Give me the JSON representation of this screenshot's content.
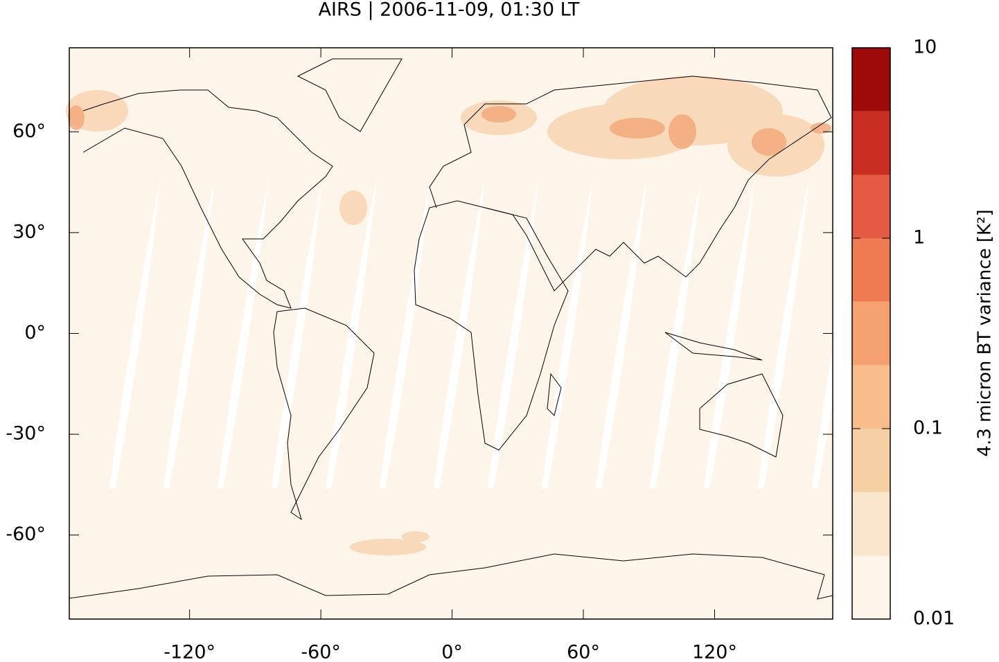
{
  "title": "AIRS | 2006-11-09, 01:30 LT",
  "map": {
    "xlim": [
      -175,
      174
    ],
    "ylim": [
      -85,
      85
    ],
    "xticks": [
      {
        "value": -120,
        "label": "-120°"
      },
      {
        "value": -60,
        "label": "-60°"
      },
      {
        "value": 0,
        "label": "0°"
      },
      {
        "value": 60,
        "label": "60°"
      },
      {
        "value": 120,
        "label": "120°"
      }
    ],
    "yticks": [
      {
        "value": -60,
        "label": "-60°"
      },
      {
        "value": -30,
        "label": "-30°"
      },
      {
        "value": 0,
        "label": "0°"
      },
      {
        "value": 30,
        "label": "30°"
      },
      {
        "value": 60,
        "label": "60°"
      }
    ]
  },
  "colorbar": {
    "label": "4.3 micron BT variance [K²]",
    "scale": "log",
    "lim": [
      0.01,
      10
    ],
    "ticks": [
      0.01,
      0.1,
      1,
      10
    ],
    "levels": [
      0.01,
      0.0215,
      0.0464,
      0.1,
      0.215,
      0.464,
      1,
      2.15,
      4.64,
      10
    ],
    "colors": [
      "#fef5ea",
      "#f9e6cc",
      "#f6d0a5",
      "#f8bd8a",
      "#f5a06f",
      "#ef7b52",
      "#e45a42",
      "#c92d22",
      "#9e0a0a"
    ]
  }
}
